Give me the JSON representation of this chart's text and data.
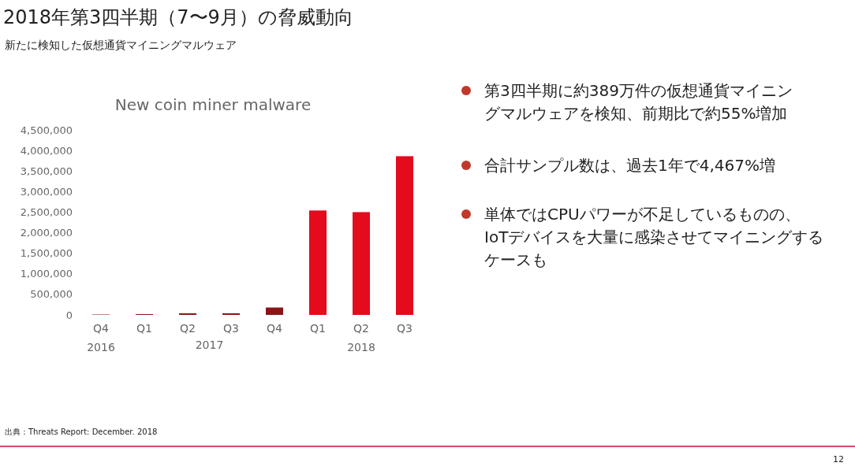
{
  "chart_data": {
    "type": "bar",
    "title": "New coin miner malware",
    "subtitle": "新たに検知した仮想通貨マイニングマルウェア",
    "categories": [
      "Q4",
      "Q1",
      "Q2",
      "Q3",
      "Q4",
      "Q1",
      "Q2",
      "Q3"
    ],
    "values": [
      10000,
      20000,
      40000,
      40000,
      180000,
      2540000,
      2500000,
      3860000
    ],
    "colors": [
      "#8b1a1a",
      "#8b1a1a",
      "#8b1a1a",
      "#8b1a1a",
      "#8b1418",
      "#e30b1c",
      "#e30b1c",
      "#e30b1c"
    ],
    "ylim": [
      0,
      4500000
    ],
    "yticks": [
      {
        "value": 0,
        "label": "0"
      },
      {
        "value": 500000,
        "label": "500,000"
      },
      {
        "value": 1000000,
        "label": "1,000,000"
      },
      {
        "value": 1500000,
        "label": "1,500,000"
      },
      {
        "value": 2000000,
        "label": "2,000,000"
      },
      {
        "value": 2500000,
        "label": "2,500,000"
      },
      {
        "value": 3000000,
        "label": "3,000,000"
      },
      {
        "value": 3500000,
        "label": "3,500,000"
      },
      {
        "value": 4000000,
        "label": "4,000,000"
      },
      {
        "value": 4500000,
        "label": "4,500,000"
      }
    ],
    "grid": false,
    "annotations": [
      "2018年第3四半期（7〜9月）の脅威動向",
      "2016",
      "2017",
      "2018",
      "第3四半期に約389万件の仮想通貨マイニングマルウェアを検知、前期比で約55%増加",
      "合計サンプル数は、過去1年で4,467%増",
      "単体ではCPUパワーが不足しているものの、IoTデバイスを大量に感染させてマイニングするケースも",
      "出典：Threats Report: December. 2018",
      "12"
    ]
  }
}
